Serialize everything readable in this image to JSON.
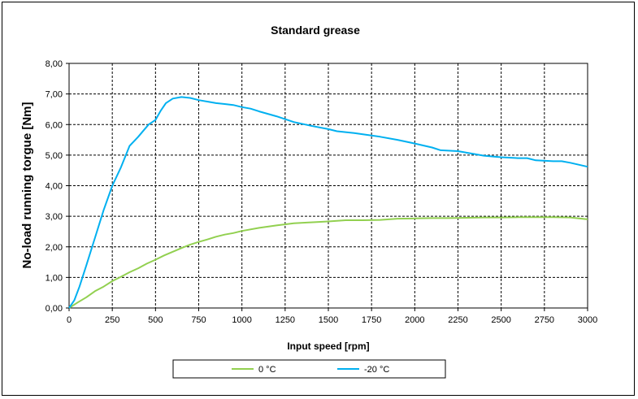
{
  "chart_data": {
    "type": "line",
    "title": "Standard grease",
    "xlabel": "Input speed [rpm]",
    "ylabel": "No-load running torgue [Nm]",
    "xlim": [
      0,
      3000
    ],
    "ylim": [
      0,
      8
    ],
    "grid": true,
    "legend_position": "bottom",
    "x_ticks": [
      "0",
      "250",
      "500",
      "750",
      "1000",
      "1250",
      "1500",
      "1750",
      "2000",
      "2250",
      "2500",
      "2750",
      "3000"
    ],
    "y_ticks": [
      "0,00",
      "1,00",
      "2,00",
      "3,00",
      "4,00",
      "5,00",
      "6,00",
      "7,00",
      "8,00"
    ],
    "series": [
      {
        "name": "0 °C",
        "color": "#92d050",
        "points": [
          [
            0,
            0
          ],
          [
            50,
            0.18
          ],
          [
            100,
            0.35
          ],
          [
            150,
            0.55
          ],
          [
            200,
            0.7
          ],
          [
            250,
            0.88
          ],
          [
            300,
            1.02
          ],
          [
            350,
            1.17
          ],
          [
            400,
            1.3
          ],
          [
            450,
            1.45
          ],
          [
            500,
            1.58
          ],
          [
            550,
            1.72
          ],
          [
            600,
            1.84
          ],
          [
            650,
            1.96
          ],
          [
            700,
            2.07
          ],
          [
            750,
            2.16
          ],
          [
            800,
            2.24
          ],
          [
            850,
            2.33
          ],
          [
            900,
            2.4
          ],
          [
            950,
            2.45
          ],
          [
            1000,
            2.52
          ],
          [
            1100,
            2.62
          ],
          [
            1200,
            2.7
          ],
          [
            1300,
            2.77
          ],
          [
            1400,
            2.8
          ],
          [
            1500,
            2.83
          ],
          [
            1600,
            2.87
          ],
          [
            1700,
            2.87
          ],
          [
            1800,
            2.88
          ],
          [
            1900,
            2.92
          ],
          [
            2000,
            2.93
          ],
          [
            2100,
            2.94
          ],
          [
            2200,
            2.94
          ],
          [
            2300,
            2.95
          ],
          [
            2400,
            2.96
          ],
          [
            2500,
            2.96
          ],
          [
            2600,
            2.97
          ],
          [
            2700,
            2.97
          ],
          [
            2800,
            2.97
          ],
          [
            2900,
            2.96
          ],
          [
            3000,
            2.9
          ]
        ]
      },
      {
        "name": "-20 °C",
        "color": "#00b0f0",
        "points": [
          [
            0,
            0
          ],
          [
            30,
            0.25
          ],
          [
            60,
            0.7
          ],
          [
            100,
            1.4
          ],
          [
            150,
            2.3
          ],
          [
            200,
            3.2
          ],
          [
            250,
            4.0
          ],
          [
            300,
            4.6
          ],
          [
            350,
            5.3
          ],
          [
            400,
            5.6
          ],
          [
            430,
            5.8
          ],
          [
            460,
            6.0
          ],
          [
            500,
            6.15
          ],
          [
            530,
            6.45
          ],
          [
            560,
            6.7
          ],
          [
            600,
            6.85
          ],
          [
            650,
            6.9
          ],
          [
            700,
            6.87
          ],
          [
            750,
            6.8
          ],
          [
            800,
            6.75
          ],
          [
            850,
            6.7
          ],
          [
            900,
            6.67
          ],
          [
            950,
            6.64
          ],
          [
            1000,
            6.57
          ],
          [
            1050,
            6.52
          ],
          [
            1100,
            6.43
          ],
          [
            1200,
            6.27
          ],
          [
            1300,
            6.08
          ],
          [
            1400,
            5.96
          ],
          [
            1500,
            5.85
          ],
          [
            1550,
            5.78
          ],
          [
            1650,
            5.72
          ],
          [
            1700,
            5.68
          ],
          [
            1800,
            5.6
          ],
          [
            1900,
            5.5
          ],
          [
            2000,
            5.38
          ],
          [
            2100,
            5.25
          ],
          [
            2150,
            5.16
          ],
          [
            2250,
            5.13
          ],
          [
            2300,
            5.08
          ],
          [
            2400,
            4.98
          ],
          [
            2500,
            4.93
          ],
          [
            2600,
            4.9
          ],
          [
            2650,
            4.9
          ],
          [
            2700,
            4.83
          ],
          [
            2800,
            4.8
          ],
          [
            2850,
            4.8
          ],
          [
            2900,
            4.75
          ],
          [
            3000,
            4.62
          ]
        ]
      }
    ]
  }
}
